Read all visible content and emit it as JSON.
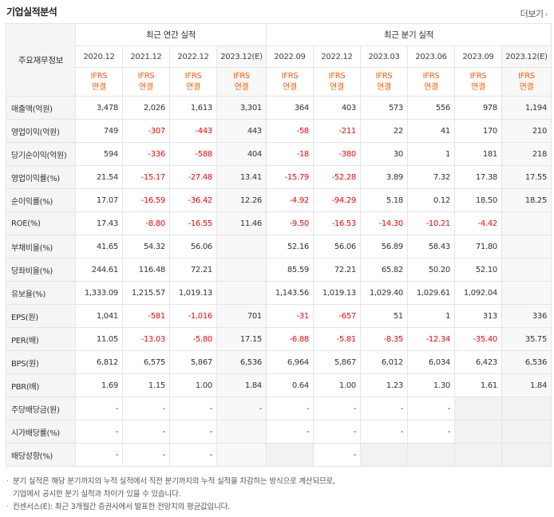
{
  "header": {
    "title": "기업실적분석",
    "more_label": "더보기",
    "more_icon": "chevron-right-icon"
  },
  "table": {
    "corner_label": "주요재무정보",
    "annual_group": "최근 연간 실적",
    "quarter_group": "최근 분기 실적",
    "periods": [
      "2020.12",
      "2021.12",
      "2022.12",
      "2023.12(E)",
      "2022.09",
      "2022.12",
      "2023.03",
      "2023.06",
      "2023.09",
      "2023.12(E)"
    ],
    "basis_top": "IFRS",
    "basis_bottom": "연결",
    "rows": [
      {
        "label": "매출액(억원)",
        "values": [
          "3,478",
          "2,026",
          "1,613",
          "3,301",
          "364",
          "403",
          "573",
          "556",
          "978",
          "1,194"
        ]
      },
      {
        "label": "영업이익(억원)",
        "values": [
          "749",
          "-307",
          "-443",
          "443",
          "-58",
          "-211",
          "22",
          "41",
          "170",
          "210"
        ]
      },
      {
        "label": "당기순이익(억원)",
        "values": [
          "594",
          "-336",
          "-588",
          "404",
          "-18",
          "-380",
          "30",
          "1",
          "181",
          "218"
        ]
      },
      {
        "label": "영업이익률(%)",
        "values": [
          "21.54",
          "-15.17",
          "-27.48",
          "13.41",
          "-15.79",
          "-52.28",
          "3.89",
          "7.32",
          "17.38",
          "17.55"
        ]
      },
      {
        "label": "순이익률(%)",
        "values": [
          "17.07",
          "-16.59",
          "-36.42",
          "12.26",
          "-4.92",
          "-94.29",
          "5.18",
          "0.12",
          "18.50",
          "18.25"
        ]
      },
      {
        "label": "ROE(%)",
        "values": [
          "17.43",
          "-8.80",
          "-16.55",
          "11.46",
          "-9.50",
          "-16.53",
          "-14.30",
          "-10.21",
          "-4.42",
          ""
        ]
      },
      {
        "label": "부채비율(%)",
        "values": [
          "41.65",
          "54.32",
          "56.06",
          "",
          "52.16",
          "56.06",
          "56.89",
          "58.43",
          "71.80",
          ""
        ]
      },
      {
        "label": "당좌비율(%)",
        "values": [
          "244.61",
          "116.48",
          "72.21",
          "",
          "85.59",
          "72.21",
          "65.82",
          "50.20",
          "52.10",
          ""
        ]
      },
      {
        "label": "유보율(%)",
        "values": [
          "1,333.09",
          "1,215.57",
          "1,019.13",
          "",
          "1,143.56",
          "1,019.13",
          "1,029.40",
          "1,029.61",
          "1,092.04",
          ""
        ]
      },
      {
        "label": "EPS(원)",
        "values": [
          "1,041",
          "-581",
          "-1,016",
          "701",
          "-31",
          "-657",
          "51",
          "1",
          "313",
          "336"
        ]
      },
      {
        "label": "PER(배)",
        "values": [
          "11.05",
          "-13.03",
          "-5.80",
          "17.15",
          "-6.88",
          "-5.81",
          "-8.35",
          "-12.34",
          "-35.40",
          "35.75"
        ]
      },
      {
        "label": "BPS(원)",
        "values": [
          "6,812",
          "6,575",
          "5,867",
          "6,536",
          "6,964",
          "5,867",
          "6,012",
          "6,034",
          "6,423",
          "6,536"
        ]
      },
      {
        "label": "PBR(배)",
        "values": [
          "1.69",
          "1.15",
          "1.00",
          "1.84",
          "0.64",
          "1.00",
          "1.23",
          "1.30",
          "1.61",
          "1.84"
        ]
      },
      {
        "label": "주당배당금(원)",
        "values": [
          "-",
          "-",
          "-",
          "-",
          "-",
          "-",
          "-",
          "-",
          "",
          ""
        ]
      },
      {
        "label": "시가배당률(%)",
        "values": [
          "-",
          "-",
          "-",
          "",
          "-",
          "-",
          "-",
          "-",
          "",
          ""
        ]
      },
      {
        "label": "배당성향(%)",
        "values": [
          "-",
          "-",
          "-",
          "",
          "",
          "-",
          "",
          "",
          "",
          ""
        ]
      }
    ]
  },
  "notes": {
    "line1": "분기 실적은 해당 분기까지의 누적 실적에서 직전 분기까지의 누적 실적을 차감하는 방식으로 계산되므로,",
    "line2": "기업에서 공시한 분기 실적과 차이가 있을 수 있습니다.",
    "line3": "컨센서스(E): 최근 3개월간 증권사에서 발표한 전망치의 평균값입니다."
  },
  "colors": {
    "negative": "#ff0000",
    "basis": "#ff5a00",
    "estimate_bg": "#f8f8f8"
  }
}
